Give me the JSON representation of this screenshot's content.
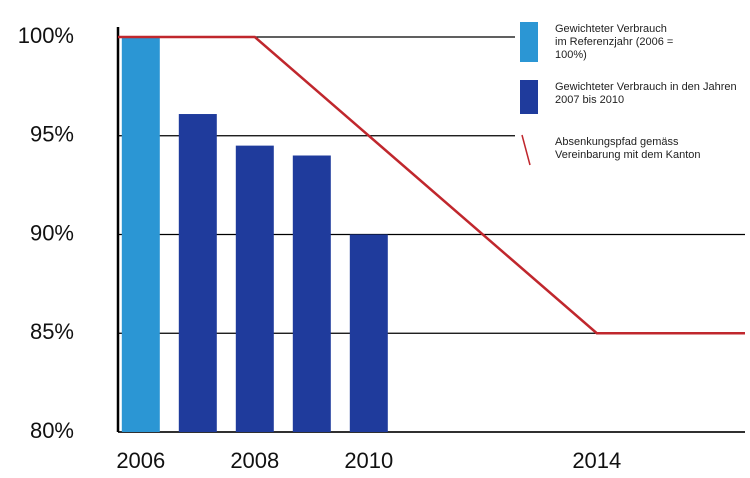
{
  "chart_data": {
    "type": "bar",
    "xlim": [
      2005.6,
      2016.6
    ],
    "xticks": [
      2006,
      2008,
      2010,
      2014
    ],
    "ylim": [
      80,
      100
    ],
    "yticks": [
      {
        "value": 80,
        "label": "80%"
      },
      {
        "value": 85,
        "label": "85%"
      },
      {
        "value": 90,
        "label": "90%"
      },
      {
        "value": 95,
        "label": "95%"
      },
      {
        "value": 100,
        "label": "100%"
      }
    ],
    "grid": true,
    "legend": "upper right",
    "series": [
      {
        "name": "Gewichteter Verbrauch im Referenzjahr (2006 = 100%)",
        "color": "#2b96d4",
        "x": [
          2006
        ],
        "values": [
          100
        ]
      },
      {
        "name": "Gewichteter Verbrauch in den Jahren 2007 bis 2010",
        "color": "#1f3b9c",
        "x": [
          2007,
          2008,
          2009,
          2010
        ],
        "values": [
          96.1,
          94.5,
          94,
          90
        ]
      },
      {
        "name": "Absenkungspfad gemäss Vereinbarung mit dem Kanton",
        "type": "line",
        "color": "#c0272d",
        "x": [
          2005.6,
          2008,
          2014,
          2016.6
        ],
        "values": [
          100,
          100,
          85,
          85
        ]
      }
    ]
  }
}
